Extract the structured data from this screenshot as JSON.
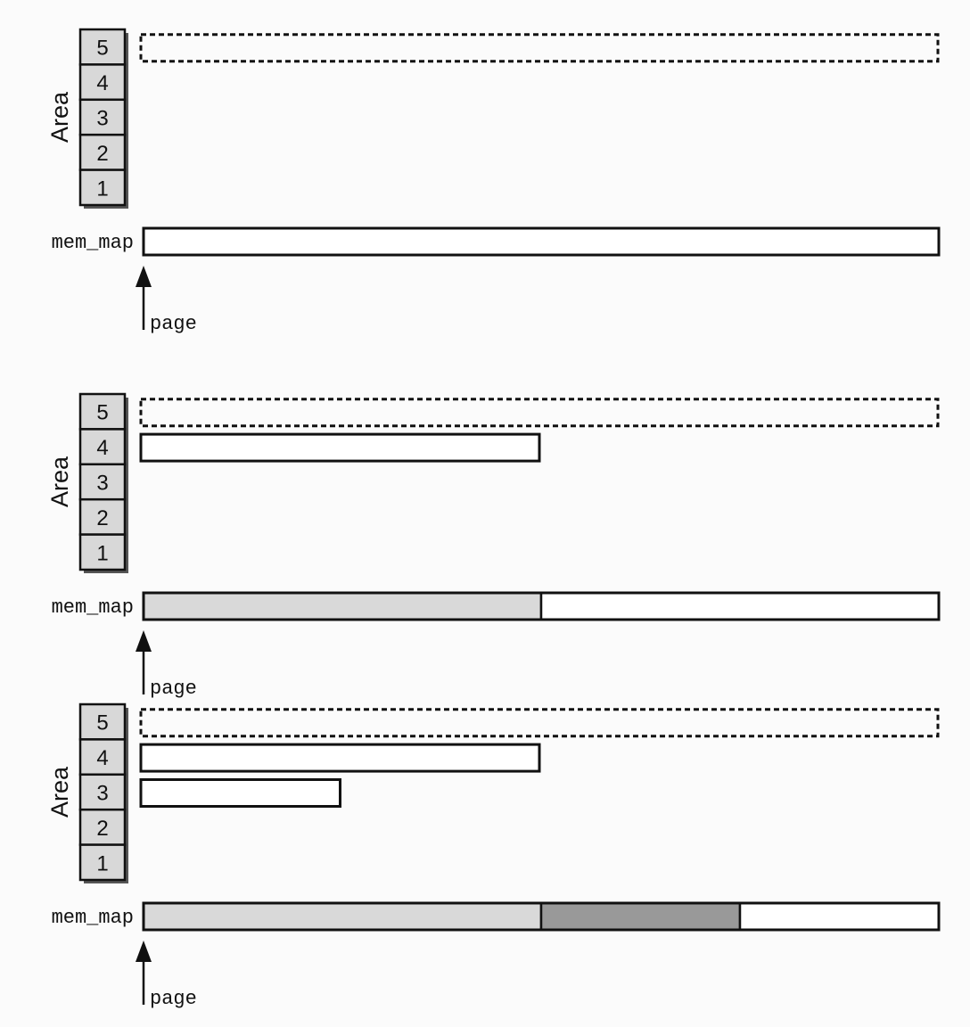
{
  "labels": {
    "area": "Area",
    "mem_map": "mem_map",
    "page": "page"
  },
  "area_levels": [
    "5",
    "4",
    "3",
    "2",
    "1"
  ],
  "colors": {
    "background": "#fbfbfb",
    "box_fill": "#d8d8d8",
    "box_shadow": "#555555",
    "stroke": "#111111",
    "allocated_light": "#d9d9d9",
    "allocated_dark": "#999999",
    "free": "#ffffff"
  },
  "panels": [
    {
      "id": "panel-1",
      "area_blocks": [
        {
          "area": "5",
          "size": "full",
          "style": "dashed"
        }
      ],
      "mem_map_segments": [
        {
          "fraction": 1.0,
          "fill": "free"
        }
      ]
    },
    {
      "id": "panel-2",
      "area_blocks": [
        {
          "area": "5",
          "size": "full",
          "style": "dashed"
        },
        {
          "area": "4",
          "size": "half",
          "style": "solid"
        }
      ],
      "mem_map_segments": [
        {
          "fraction": 0.5,
          "fill": "allocated_light"
        },
        {
          "fraction": 0.5,
          "fill": "free"
        }
      ]
    },
    {
      "id": "panel-3",
      "area_blocks": [
        {
          "area": "5",
          "size": "full",
          "style": "dashed"
        },
        {
          "area": "4",
          "size": "half",
          "style": "solid"
        },
        {
          "area": "3",
          "size": "quarter",
          "style": "solid"
        }
      ],
      "mem_map_segments": [
        {
          "fraction": 0.5,
          "fill": "allocated_light"
        },
        {
          "fraction": 0.25,
          "fill": "allocated_dark"
        },
        {
          "fraction": 0.25,
          "fill": "free"
        }
      ]
    }
  ]
}
